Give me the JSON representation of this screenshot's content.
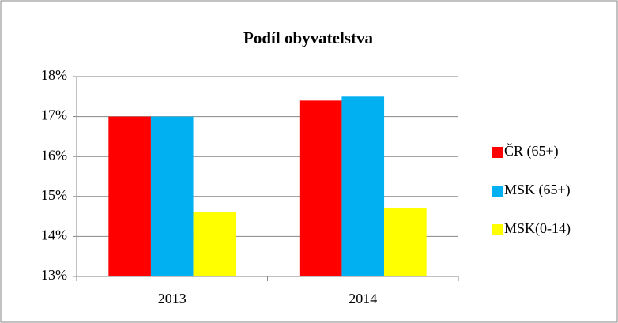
{
  "chart_data": {
    "type": "bar",
    "title": "Podíl obyvatelstva",
    "categories": [
      "2013",
      "2014"
    ],
    "series": [
      {
        "name": "ČR (65+)",
        "color": "#ff0000",
        "values": [
          17,
          17.4
        ]
      },
      {
        "name": "MSK (65+)",
        "color": "#00b0f0",
        "values": [
          17,
          17.5
        ]
      },
      {
        "name": "MSK(0-14)",
        "color": "#ffff00",
        "values": [
          14.6,
          14.7
        ]
      }
    ],
    "ylim": [
      13,
      18
    ],
    "yticks": [
      {
        "value": 13,
        "label": "13%"
      },
      {
        "value": 14,
        "label": "14%"
      },
      {
        "value": 15,
        "label": "15%"
      },
      {
        "value": 16,
        "label": "16%"
      },
      {
        "value": 17,
        "label": "17%"
      },
      {
        "value": 18,
        "label": "18%"
      }
    ],
    "grid": true,
    "legend": "right"
  }
}
